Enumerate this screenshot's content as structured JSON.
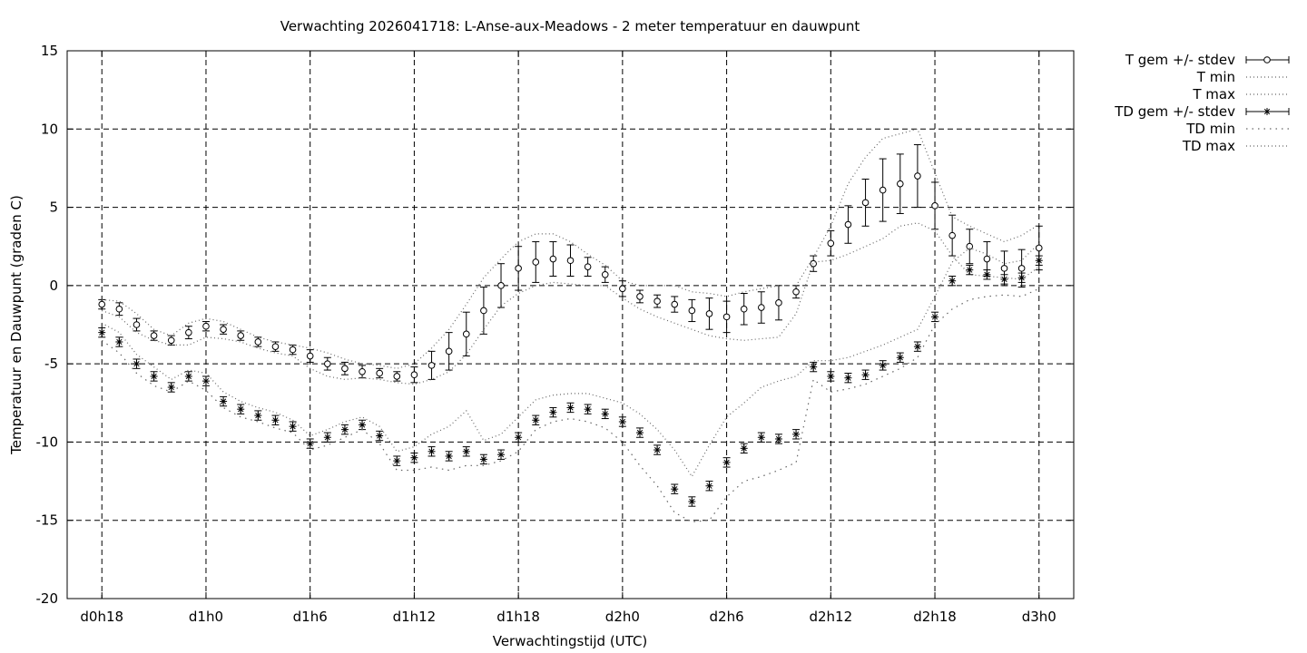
{
  "chart_data": {
    "type": "line",
    "title": "Verwachting 2026041718: L-Anse-aux-Meadows - 2 meter temperatuur en dauwpunt",
    "xlabel": "Verwachtingstijd (UTC)",
    "ylabel": "Temperatuur en Dauwpunt (graden C)",
    "ylim": [
      -20,
      15
    ],
    "xlim_hours": [
      -2,
      56
    ],
    "grid": true,
    "legend_position": "outside-top-right",
    "x_tick_labels": [
      "d0h18",
      "d1h0",
      "d1h6",
      "d1h12",
      "d1h18",
      "d2h0",
      "d2h6",
      "d2h12",
      "d2h18",
      "d3h0"
    ],
    "x_tick_hours": [
      0,
      6,
      12,
      18,
      24,
      30,
      36,
      42,
      48,
      54
    ],
    "y_tick_labels": [
      "15",
      "10",
      "5",
      "0",
      "-5",
      "-10",
      "-15",
      "-20"
    ],
    "y_tick_values": [
      15,
      10,
      5,
      0,
      -5,
      -10,
      -15,
      -20
    ],
    "x_hours": [
      0,
      1,
      2,
      3,
      4,
      5,
      6,
      7,
      8,
      9,
      10,
      11,
      12,
      13,
      14,
      15,
      16,
      17,
      18,
      19,
      20,
      21,
      22,
      23,
      24,
      25,
      26,
      27,
      28,
      29,
      30,
      31,
      32,
      33,
      34,
      35,
      36,
      37,
      38,
      39,
      40,
      41,
      42,
      43,
      44,
      45,
      46,
      47,
      48,
      49,
      50,
      51,
      52,
      53,
      54
    ],
    "series": [
      {
        "name": "T gem +/- stdev",
        "marker": "circle",
        "values": [
          -1.2,
          -1.5,
          -2.5,
          -3.2,
          -3.5,
          -3.0,
          -2.6,
          -2.8,
          -3.2,
          -3.6,
          -3.9,
          -4.1,
          -4.5,
          -5.0,
          -5.3,
          -5.5,
          -5.6,
          -5.8,
          -5.7,
          -5.1,
          -4.2,
          -3.1,
          -1.6,
          0.0,
          1.1,
          1.5,
          1.7,
          1.6,
          1.2,
          0.7,
          -0.2,
          -0.7,
          -1.0,
          -1.2,
          -1.6,
          -1.8,
          -2.0,
          -1.5,
          -1.4,
          -1.1,
          -0.4,
          1.4,
          2.7,
          3.9,
          5.3,
          6.1,
          6.5,
          7.0,
          5.1,
          3.2,
          2.5,
          1.7,
          1.1,
          1.1,
          2.4
        ],
        "stdev": [
          0.3,
          0.4,
          0.4,
          0.3,
          0.3,
          0.4,
          0.3,
          0.3,
          0.3,
          0.3,
          0.3,
          0.3,
          0.4,
          0.4,
          0.4,
          0.4,
          0.3,
          0.3,
          0.5,
          0.9,
          1.2,
          1.4,
          1.5,
          1.4,
          1.4,
          1.3,
          1.1,
          1.0,
          0.6,
          0.5,
          0.5,
          0.4,
          0.4,
          0.5,
          0.7,
          1.0,
          1.0,
          1.0,
          1.0,
          1.1,
          0.4,
          0.5,
          0.8,
          1.2,
          1.5,
          2.0,
          1.9,
          2.0,
          1.5,
          1.3,
          1.1,
          1.1,
          1.1,
          1.2,
          1.4
        ]
      },
      {
        "name": "T min",
        "style": "dotted",
        "values": [
          -1.6,
          -2.0,
          -3.0,
          -3.5,
          -3.8,
          -3.8,
          -3.3,
          -3.4,
          -3.6,
          -4.0,
          -4.3,
          -4.5,
          -5.3,
          -5.8,
          -6.0,
          -5.9,
          -6.0,
          -6.2,
          -6.3,
          -6.0,
          -5.5,
          -4.4,
          -2.8,
          -1.3,
          -0.5,
          0.0,
          0.2,
          0.1,
          0.0,
          0.0,
          -0.8,
          -1.5,
          -2.0,
          -2.4,
          -2.8,
          -3.2,
          -3.4,
          -3.5,
          -3.4,
          -3.3,
          -1.8,
          1.5,
          1.6,
          2.0,
          2.5,
          3.0,
          3.8,
          4.0,
          3.5,
          1.9,
          0.7,
          0.6,
          0.5,
          0.4,
          1.2
        ]
      },
      {
        "name": "T max",
        "style": "dotted",
        "values": [
          -0.9,
          -1.0,
          -1.8,
          -2.8,
          -3.2,
          -2.4,
          -2.1,
          -2.3,
          -2.8,
          -3.3,
          -3.6,
          -3.8,
          -4.0,
          -4.3,
          -4.7,
          -5.0,
          -5.1,
          -5.3,
          -5.0,
          -4.0,
          -2.8,
          -1.2,
          0.5,
          1.7,
          2.8,
          3.3,
          3.3,
          2.8,
          2.0,
          1.3,
          0.3,
          0.0,
          0.0,
          0.0,
          -0.4,
          -0.5,
          -0.7,
          -0.4,
          -0.2,
          0.0,
          0.0,
          1.8,
          3.8,
          6.5,
          8.2,
          9.4,
          9.7,
          10.0,
          7.2,
          4.4,
          3.8,
          3.3,
          2.8,
          3.2,
          3.9
        ]
      },
      {
        "name": "TD gem +/- stdev",
        "marker": "star",
        "values": [
          -3.0,
          -3.6,
          -5.0,
          -5.8,
          -6.5,
          -5.8,
          -6.1,
          -7.4,
          -7.9,
          -8.3,
          -8.6,
          -9.0,
          -10.1,
          -9.7,
          -9.2,
          -8.9,
          -9.6,
          -11.2,
          -11.0,
          -10.6,
          -10.9,
          -10.6,
          -11.1,
          -10.8,
          -9.7,
          -8.6,
          -8.1,
          -7.8,
          -7.9,
          -8.2,
          -8.7,
          -9.4,
          -10.5,
          -13.0,
          -13.8,
          -12.8,
          -11.3,
          -10.4,
          -9.7,
          -9.8,
          -9.5,
          -5.2,
          -5.8,
          -5.9,
          -5.7,
          -5.1,
          -4.6,
          -3.9,
          -2.0,
          0.3,
          1.0,
          0.7,
          0.4,
          0.5,
          1.6
        ]
      },
      {
        "name": "TD min",
        "style": "dotted",
        "values": [
          -3.5,
          -4.3,
          -5.6,
          -6.4,
          -6.8,
          -6.1,
          -6.7,
          -7.8,
          -8.4,
          -8.7,
          -9.1,
          -9.4,
          -10.5,
          -10.2,
          -9.7,
          -9.2,
          -10.1,
          -11.8,
          -11.8,
          -11.6,
          -11.8,
          -11.5,
          -11.5,
          -11.2,
          -10.6,
          -9.2,
          -8.7,
          -8.5,
          -8.7,
          -9.1,
          -10.0,
          -11.5,
          -12.8,
          -14.5,
          -15.1,
          -15.0,
          -13.5,
          -12.5,
          -12.2,
          -11.8,
          -11.3,
          -6.0,
          -6.8,
          -6.6,
          -6.3,
          -5.8,
          -5.3,
          -4.6,
          -2.5,
          -1.5,
          -0.9,
          -0.7,
          -0.6,
          -0.7,
          -0.2
        ]
      },
      {
        "name": "TD max",
        "style": "dotted",
        "values": [
          -2.4,
          -3.0,
          -4.4,
          -5.2,
          -6.0,
          -5.4,
          -5.6,
          -6.8,
          -7.4,
          -7.8,
          -8.1,
          -8.6,
          -9.6,
          -9.2,
          -8.7,
          -8.4,
          -9.0,
          -10.6,
          -10.3,
          -9.5,
          -9.0,
          -8.0,
          -9.9,
          -9.5,
          -8.4,
          -7.3,
          -7.0,
          -6.9,
          -6.9,
          -7.2,
          -7.5,
          -8.2,
          -9.2,
          -10.5,
          -12.2,
          -10.2,
          -8.4,
          -7.5,
          -6.5,
          -6.1,
          -5.8,
          -4.8,
          -4.8,
          -4.6,
          -4.2,
          -3.8,
          -3.3,
          -2.8,
          -0.7,
          1.5,
          2.4,
          2.0,
          1.4,
          1.6,
          2.7
        ]
      }
    ]
  }
}
